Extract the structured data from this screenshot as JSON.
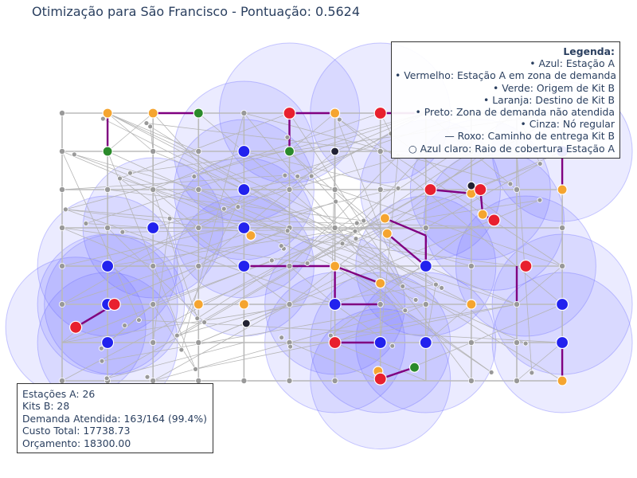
{
  "title": "Otimização para São Francisco - Pontuação: 0.5624",
  "legend": {
    "title": "Legenda:",
    "items": [
      "• Azul: Estação A",
      "• Vermelho: Estação A em zona de demanda",
      "• Verde: Origem de Kit B",
      "• Laranja: Destino de Kit B",
      "• Preto: Zona de demanda não atendida",
      "• Cinza: Nó regular",
      "— Roxo: Caminho de entrega Kit B",
      "○ Azul claro: Raio de cobertura Estação A"
    ]
  },
  "stats": {
    "lines": [
      "Estações A: 26",
      " Kits B: 28",
      " Demanda Atendida: 163/164 (99.4%)",
      " Custo Total: 17738.73",
      " Orçamento: 18300.00"
    ]
  },
  "colors": {
    "station_a": "#2222ee",
    "station_a_demand": "#e8202e",
    "kit_origin": "#2a8a2a",
    "kit_destination": "#f5a530",
    "unserved": "#222233",
    "regular": "#999999",
    "delivery_path": "#800080",
    "coverage": "#6666ff"
  },
  "chart_data": {
    "type": "scatter",
    "note_units": "grid coordinates (column 0-11, row 0-7)",
    "grid": {
      "cols": 12,
      "rows": 8
    },
    "station_a": [
      [
        4,
        1
      ],
      [
        4,
        2
      ],
      [
        2,
        3
      ],
      [
        4,
        3
      ],
      [
        1,
        4
      ],
      [
        4,
        4
      ],
      [
        8,
        4
      ],
      [
        1,
        5
      ],
      [
        6,
        5
      ],
      [
        11,
        5
      ],
      [
        1,
        6
      ],
      [
        7,
        6
      ],
      [
        8,
        6
      ],
      [
        11,
        6
      ],
      [
        11,
        1
      ]
    ],
    "station_a_demand": [
      [
        5,
        0
      ],
      [
        7,
        0
      ],
      [
        8.1,
        2
      ],
      [
        9.2,
        2
      ],
      [
        9.5,
        2.8
      ],
      [
        10.2,
        4
      ],
      [
        1.15,
        5
      ],
      [
        0.3,
        5.6
      ],
      [
        6,
        6
      ],
      [
        7,
        6.95
      ]
    ],
    "kit_origin": [
      [
        3,
        0
      ],
      [
        1,
        1
      ],
      [
        5,
        1
      ],
      [
        7.75,
        6.65
      ]
    ],
    "kit_destination": [
      [
        1,
        0
      ],
      [
        2,
        0
      ],
      [
        6,
        0
      ],
      [
        9.0,
        2.1
      ],
      [
        9.25,
        2.65
      ],
      [
        7.1,
        2.75
      ],
      [
        7.15,
        3.15
      ],
      [
        4.15,
        3.2
      ],
      [
        4,
        5
      ],
      [
        6,
        4
      ],
      [
        7,
        4.45
      ],
      [
        3,
        5
      ],
      [
        6,
        5
      ],
      [
        9,
        5
      ],
      [
        1.0,
        4.98
      ],
      [
        11,
        2
      ],
      [
        11,
        7
      ],
      [
        6.95,
        6.75
      ]
    ],
    "unserved": [
      [
        6,
        1
      ],
      [
        9,
        1.9
      ],
      [
        4.05,
        5.5
      ]
    ],
    "regular_grid": "all remaining 12x8 grid intersections plus scattered intermediate nodes",
    "delivery_paths": [
      [
        [
          1,
          0
        ],
        [
          1,
          1
        ]
      ],
      [
        [
          2,
          0
        ],
        [
          3,
          0
        ]
      ],
      [
        [
          5,
          0
        ],
        [
          6,
          0
        ]
      ],
      [
        [
          5,
          0
        ],
        [
          5,
          1
        ]
      ],
      [
        [
          7,
          0
        ],
        [
          7.75,
          0
        ]
      ],
      [
        [
          8.1,
          2
        ],
        [
          9.0,
          2.1
        ]
      ],
      [
        [
          9.2,
          2
        ],
        [
          9.25,
          2.65
        ]
      ],
      [
        [
          9.25,
          2.65
        ],
        [
          9.5,
          2.8
        ]
      ],
      [
        [
          11,
          1
        ],
        [
          11,
          2
        ]
      ],
      [
        [
          7.1,
          2.75
        ],
        [
          8,
          3.2
        ]
      ],
      [
        [
          7.15,
          3.15
        ],
        [
          8,
          4
        ]
      ],
      [
        [
          8,
          3.2
        ],
        [
          8,
          4
        ]
      ],
      [
        [
          4,
          4
        ],
        [
          6,
          4
        ]
      ],
      [
        [
          6,
          4
        ],
        [
          6,
          5
        ]
      ],
      [
        [
          6,
          4
        ],
        [
          7,
          4.45
        ]
      ],
      [
        [
          6,
          5
        ],
        [
          7,
          5
        ]
      ],
      [
        [
          1.15,
          5
        ],
        [
          0.3,
          5.6
        ]
      ],
      [
        [
          6,
          6
        ],
        [
          7,
          6
        ]
      ],
      [
        [
          7,
          6.95
        ],
        [
          7.75,
          6.65
        ]
      ],
      [
        [
          10,
          4
        ],
        [
          10,
          5
        ]
      ],
      [
        [
          11,
          6
        ],
        [
          11,
          7
        ]
      ]
    ]
  }
}
